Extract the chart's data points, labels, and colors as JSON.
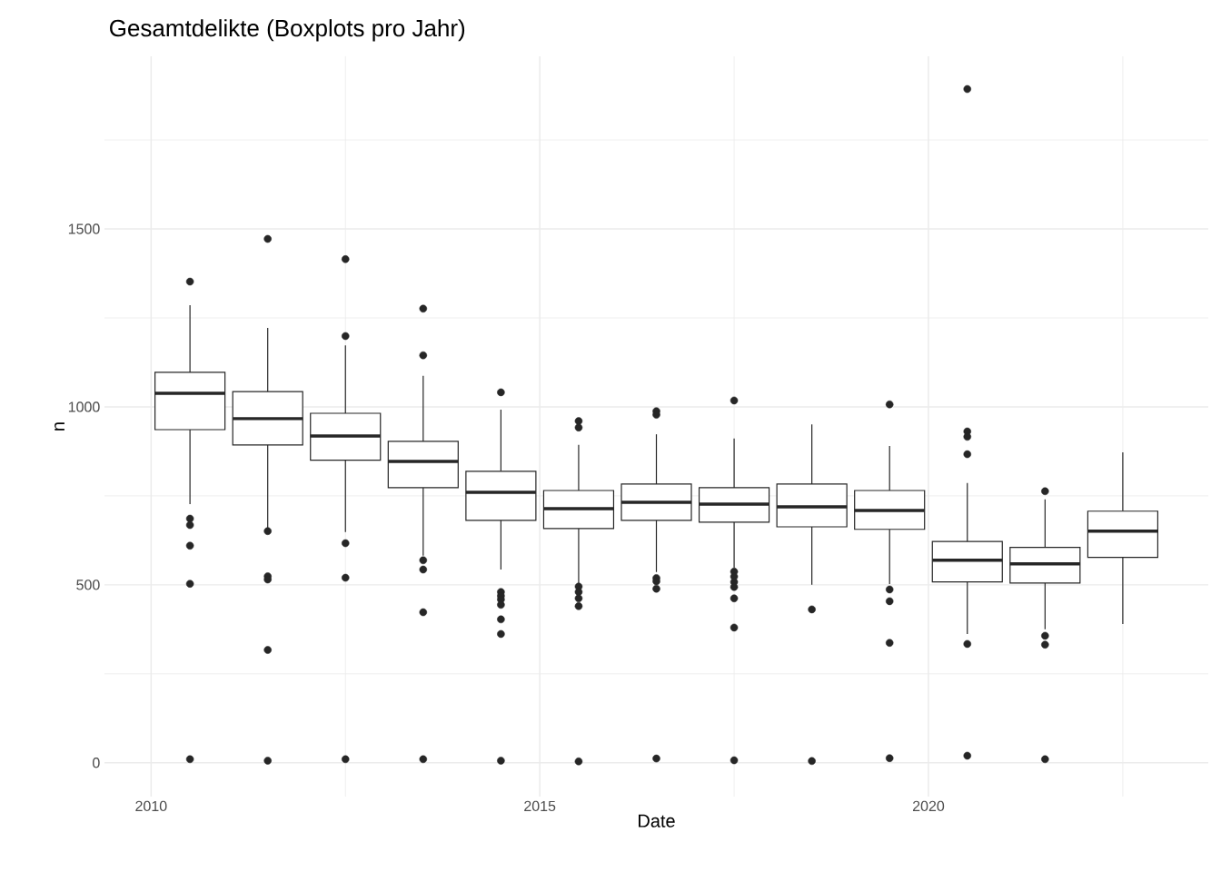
{
  "chart_data": {
    "type": "box",
    "title": "Gesamtdelikte (Boxplots pro Jahr)",
    "xlabel": "Date",
    "ylabel": "n",
    "x": [
      2010.5,
      2011.5,
      2012.5,
      2013.5,
      2014.5,
      2015.5,
      2016.5,
      2017.5,
      2018.5,
      2019.5,
      2020.5,
      2021.5,
      2022.5
    ],
    "series": [
      {
        "color": "#262626",
        "boxes": [
          {
            "low": 727,
            "q1": 936,
            "median": 1038,
            "q3": 1097,
            "high": 1286,
            "outliers": [
              1352,
              686,
              668,
              610,
              503,
              10
            ]
          },
          {
            "low": 658,
            "q1": 893,
            "median": 967,
            "q3": 1043,
            "high": 1222,
            "outliers": [
              1472,
              651,
              524,
              515,
              317,
              6
            ]
          },
          {
            "low": 648,
            "q1": 850,
            "median": 918,
            "q3": 982,
            "high": 1173,
            "outliers": [
              1415,
              1199,
              617,
              520,
              10
            ]
          },
          {
            "low": 582,
            "q1": 773,
            "median": 847,
            "q3": 903,
            "high": 1087,
            "outliers": [
              1276,
              1145,
              569,
              543,
              423,
              10
            ]
          },
          {
            "low": 543,
            "q1": 681,
            "median": 760,
            "q3": 819,
            "high": 992,
            "outliers": [
              1041,
              480,
              469,
              459,
              444,
              403,
              362,
              6
            ]
          },
          {
            "low": 497,
            "q1": 658,
            "median": 714,
            "q3": 765,
            "high": 893,
            "outliers": [
              960,
              942,
              495,
              480,
              462,
              440,
              4
            ]
          },
          {
            "low": 536,
            "q1": 681,
            "median": 732,
            "q3": 783,
            "high": 923,
            "outliers": [
              988,
              978,
              519,
              510,
              489,
              12
            ]
          },
          {
            "low": 548,
            "q1": 676,
            "median": 727,
            "q3": 773,
            "high": 911,
            "outliers": [
              1018,
              537,
              523,
              508,
              494,
              462,
              380,
              7
            ]
          },
          {
            "low": 500,
            "q1": 663,
            "median": 719,
            "q3": 783,
            "high": 951,
            "outliers": [
              431,
              5
            ]
          },
          {
            "low": 502,
            "q1": 656,
            "median": 709,
            "q3": 765,
            "high": 890,
            "outliers": [
              1007,
              487,
              454,
              337,
              13
            ]
          },
          {
            "low": 362,
            "q1": 508,
            "median": 569,
            "q3": 622,
            "high": 786,
            "outliers": [
              1893,
              931,
              916,
              867,
              334,
              20
            ]
          },
          {
            "low": 375,
            "q1": 505,
            "median": 559,
            "q3": 605,
            "high": 740,
            "outliers": [
              763,
              357,
              332,
              10
            ]
          },
          {
            "low": 390,
            "q1": 577,
            "median": 651,
            "q3": 707,
            "high": 872
          }
        ]
      }
    ],
    "xlim": [
      2009.4,
      2023.6
    ],
    "ylim": [
      -95,
      1985
    ],
    "xticks": [
      2010,
      {
        "value": 2012.5,
        "label": null
      },
      2015,
      {
        "value": 2017.5,
        "label": null
      },
      2020,
      {
        "value": 2022.5,
        "label": null
      }
    ],
    "yticks": [
      0,
      {
        "value": 250,
        "label": null
      },
      500,
      {
        "value": 750,
        "label": null
      },
      1000,
      {
        "value": 1250,
        "label": null
      },
      1500,
      {
        "value": 1750,
        "label": null
      }
    ],
    "grid": true
  }
}
